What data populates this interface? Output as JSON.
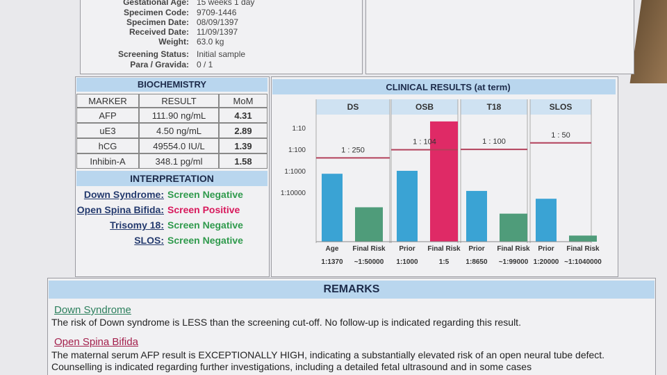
{
  "header": {
    "fields": [
      {
        "label": "Gestational Age:",
        "value": "15 weeks 1 day"
      },
      {
        "label": "Specimen Code:",
        "value": "9709-1446"
      },
      {
        "label": "Specimen Date:",
        "value": "08/09/1397"
      },
      {
        "label": "Received Date:",
        "value": "11/09/1397"
      },
      {
        "label": "Weight:",
        "value": "63.0 kg"
      },
      {
        "label": "Screening Status:",
        "value": "Initial sample"
      },
      {
        "label": "Para / Gravida:",
        "value": "0 / 1"
      }
    ]
  },
  "biochemistry": {
    "title": "BIOCHEMISTRY",
    "columns": [
      "MARKER",
      "RESULT",
      "MoM"
    ],
    "rows": [
      [
        "AFP",
        "111.90 ng/mL",
        "4.31"
      ],
      [
        "uE3",
        "4.50 ng/mL",
        "2.89"
      ],
      [
        "hCG",
        "49554.0 IU/L",
        "1.39"
      ],
      [
        "Inhibin-A",
        "348.1 pg/ml",
        "1.58"
      ]
    ]
  },
  "interpretation": {
    "title": "INTERPRETATION",
    "items": [
      {
        "condition": "Down Syndrome:",
        "result": "Screen Negative"
      },
      {
        "condition": "Open Spina Bifida:",
        "result": "Screen  Positive"
      },
      {
        "condition": "Trisomy 18:",
        "result": "Screen Negative"
      },
      {
        "condition": "SLOS:",
        "result": "Screen Negative"
      }
    ]
  },
  "chart_data": {
    "type": "bar",
    "title": "CLINICAL RESULTS (at term)",
    "log_scale": true,
    "ylim": [
      2000000,
      3
    ],
    "yticks": [
      {
        "value": 10,
        "label": "1:10"
      },
      {
        "value": 100,
        "label": "1:100"
      },
      {
        "value": 1000,
        "label": "1:1000"
      },
      {
        "value": 10000,
        "label": "1:10000"
      }
    ],
    "cutoff_color": "#b2405a",
    "panels": [
      {
        "name": "DS",
        "cutoff": 250,
        "cutoff_label": "1 : 250",
        "bars": [
          {
            "label": "Age",
            "value": 1370,
            "value_label": "1:1370",
            "color": "#3aa3d4"
          },
          {
            "label": "Final Risk",
            "value": 50000,
            "value_label": "~1:50000",
            "color": "#4f9c7a"
          }
        ]
      },
      {
        "name": "OSB",
        "cutoff": 104,
        "cutoff_label": "1 : 104",
        "bars": [
          {
            "label": "Prior",
            "value": 1000,
            "value_label": "1:1000",
            "color": "#3aa3d4"
          },
          {
            "label": "Final Risk",
            "value": 5,
            "value_label": "1:5",
            "color": "#df2a66"
          }
        ]
      },
      {
        "name": "T18",
        "cutoff": 100,
        "cutoff_label": "1 : 100",
        "bars": [
          {
            "label": "Prior",
            "value": 8650,
            "value_label": "1:8650",
            "color": "#3aa3d4"
          },
          {
            "label": "Final Risk",
            "value": 99000,
            "value_label": "~1:99000",
            "color": "#4f9c7a"
          }
        ]
      },
      {
        "name": "SLOS",
        "cutoff": 50,
        "cutoff_label": "1 : 50",
        "bars": [
          {
            "label": "Prior",
            "value": 20000,
            "value_label": "1:20000",
            "color": "#3aa3d4"
          },
          {
            "label": "Final Risk",
            "value": 1040000,
            "value_label": "~1:1040000",
            "color": "#4f9c7a"
          }
        ]
      }
    ]
  },
  "remarks": {
    "title": "REMARKS",
    "items": [
      {
        "heading": "Down Syndrome",
        "text": "The risk of Down syndrome is LESS than the screening cut-off. No follow-up is indicated regarding this result."
      },
      {
        "heading": "Open Spina Bifida",
        "text": "The maternal serum AFP result is EXCEPTIONALLY HIGH, indicating a substantially elevated risk of an open neural tube defect. Counselling is indicated regarding further investigations, including a detailed fetal ultrasound and in some cases"
      }
    ]
  }
}
